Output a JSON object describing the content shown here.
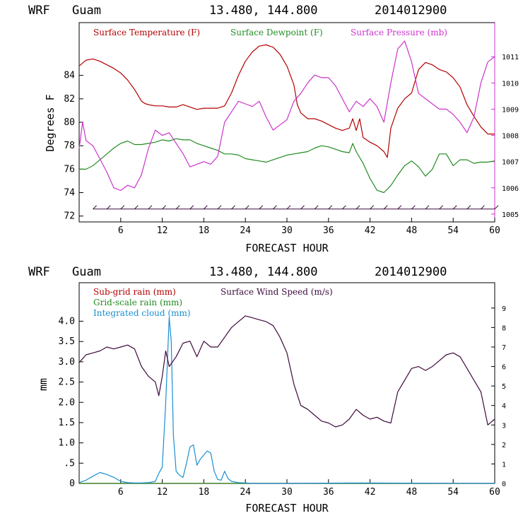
{
  "chart_data": [
    {
      "type": "line",
      "header": {
        "model": "WRF",
        "location": "Guam",
        "coords": "13.480, 144.800",
        "date": "2014012900"
      },
      "xlabel": "FORECAST HOUR",
      "ylabel": "Degrees F",
      "xlim": [
        0,
        60
      ],
      "ylim": [
        71.5,
        88.5
      ],
      "y2lim": [
        1004.7,
        1012.3
      ],
      "xticks": [
        6,
        12,
        18,
        24,
        30,
        36,
        42,
        48,
        54,
        60
      ],
      "yticks": [
        72,
        74,
        76,
        78,
        80,
        82,
        84
      ],
      "y2ticks": [
        1005,
        1006,
        1007,
        1008,
        1009,
        1010,
        1011
      ],
      "series": [
        {
          "name": "Surface Temperature (F)",
          "color": "#b30000",
          "axis": "left",
          "x": [
            0,
            1,
            2,
            3,
            4,
            5,
            6,
            7,
            8,
            9,
            9.5,
            10,
            11,
            12,
            13,
            14,
            15,
            16,
            17,
            18,
            19,
            20,
            21,
            22,
            23,
            24,
            25,
            26,
            27,
            28,
            29,
            30,
            31,
            31.5,
            32,
            33,
            34,
            35,
            36,
            37,
            38,
            39,
            39.5,
            40,
            40.5,
            41,
            42,
            43,
            44,
            44.5,
            45,
            46,
            47,
            48,
            49,
            50,
            51,
            52,
            53,
            54,
            55,
            56,
            57,
            58,
            59,
            60
          ],
          "y": [
            84.8,
            85.3,
            85.4,
            85.2,
            84.9,
            84.6,
            84.2,
            83.6,
            82.8,
            81.8,
            81.6,
            81.5,
            81.4,
            81.4,
            81.3,
            81.3,
            81.5,
            81.3,
            81.1,
            81.2,
            81.2,
            81.2,
            81.4,
            82.5,
            84,
            85.2,
            86,
            86.5,
            86.6,
            86.4,
            85.8,
            84.8,
            83.2,
            81.5,
            80.8,
            80.3,
            80.3,
            80.1,
            79.8,
            79.5,
            79.3,
            79.5,
            80.3,
            79.3,
            80.3,
            78.7,
            78.3,
            78,
            77.5,
            77,
            79.5,
            81.2,
            82,
            82.5,
            84.5,
            85.1,
            84.9,
            84.5,
            84.3,
            83.8,
            83,
            81.5,
            80.5,
            79.6,
            79,
            79
          ],
          "labels": []
        },
        {
          "name": "Surface Dewpoint (F)",
          "color": "#228b22",
          "axis": "left",
          "x": [
            0,
            1,
            2,
            3,
            4,
            5,
            6,
            7,
            8,
            9,
            10,
            11,
            12,
            13,
            14,
            15,
            16,
            17,
            18,
            19,
            20,
            21,
            22,
            23,
            24,
            25,
            26,
            27,
            28,
            29,
            30,
            31,
            32,
            33,
            34,
            35,
            36,
            37,
            38,
            39,
            39.5,
            40,
            41,
            42,
            43,
            44,
            45,
            46,
            47,
            48,
            49,
            50,
            51,
            52,
            53,
            54,
            55,
            56,
            57,
            58,
            59,
            60
          ],
          "y": [
            76,
            76,
            76.3,
            76.8,
            77.3,
            77.8,
            78.2,
            78.4,
            78.1,
            78.1,
            78.2,
            78.3,
            78.5,
            78.4,
            78.6,
            78.5,
            78.5,
            78.2,
            78,
            77.8,
            77.6,
            77.3,
            77.3,
            77.2,
            76.9,
            76.8,
            76.7,
            76.6,
            76.8,
            77,
            77.2,
            77.3,
            77.4,
            77.5,
            77.8,
            78,
            77.9,
            77.7,
            77.5,
            77.4,
            78.2,
            77.5,
            76.5,
            75.2,
            74.2,
            74,
            74.6,
            75.5,
            76.3,
            76.7,
            76.2,
            75.4,
            76,
            77.3,
            77.3,
            76.3,
            76.8,
            76.8,
            76.5,
            76.6,
            76.6,
            76.7
          ],
          "labels": []
        },
        {
          "name": "Surface Pressure (mb)",
          "color": "#cc33cc",
          "axis": "right",
          "x": [
            0,
            0.5,
            1,
            2,
            3,
            4,
            5,
            6,
            7,
            8,
            9,
            10,
            11,
            12,
            13,
            14,
            15,
            16,
            17,
            18,
            19,
            20,
            21,
            22,
            23,
            24,
            25,
            26,
            27,
            28,
            29,
            30,
            31,
            32,
            33,
            34,
            35,
            36,
            37,
            38,
            39,
            40,
            41,
            42,
            43,
            44,
            45,
            46,
            47,
            48,
            49,
            50,
            51,
            52,
            53,
            54,
            55,
            56,
            57,
            58,
            59,
            60
          ],
          "y": [
            1007.5,
            1008.5,
            1007.8,
            1007.6,
            1007.1,
            1006.6,
            1006,
            1005.9,
            1006.1,
            1006,
            1006.5,
            1007.5,
            1008.2,
            1008,
            1008.1,
            1007.7,
            1007.3,
            1006.8,
            1006.9,
            1007,
            1006.9,
            1007.2,
            1008.5,
            1008.9,
            1009.3,
            1009.2,
            1009.1,
            1009.3,
            1008.7,
            1008.2,
            1008.4,
            1008.6,
            1009.3,
            1009.6,
            1010,
            1010.3,
            1010.2,
            1010.2,
            1009.9,
            1009.4,
            1008.9,
            1009.3,
            1009.1,
            1009.4,
            1009.1,
            1008.5,
            1010,
            1011.3,
            1011.6,
            1010.8,
            1009.6,
            1009.4,
            1009.2,
            1009,
            1009,
            1008.8,
            1008.5,
            1008.1,
            1008.7,
            1010,
            1010.8,
            1011
          ],
          "labels": []
        }
      ],
      "wind_barbs": {
        "y_level": 72.6,
        "x": [
          2,
          4,
          6,
          8,
          10,
          12,
          14,
          16,
          18,
          20,
          22,
          24,
          26,
          28,
          30,
          32,
          34,
          36,
          38,
          40,
          42,
          44,
          46,
          48,
          50,
          52,
          54,
          56,
          58,
          60
        ]
      }
    },
    {
      "type": "line",
      "header": {
        "model": "WRF",
        "location": "Guam",
        "coords": "13.480, 144.800",
        "date": "2014012900"
      },
      "xlabel": "FORECAST HOUR",
      "ylabel": "mm",
      "xlim": [
        0,
        60
      ],
      "ylim": [
        0,
        4.95
      ],
      "y2lim": [
        0,
        10.3
      ],
      "xticks": [
        6,
        12,
        18,
        24,
        30,
        36,
        42,
        48,
        54,
        60
      ],
      "yticks": [
        0,
        0.5,
        1,
        1.5,
        2,
        2.5,
        3,
        3.5,
        4
      ],
      "yticklabels": [
        "0",
        ".5",
        "1.0",
        "1.5",
        "2.0",
        "2.5",
        "3.0",
        "3.5",
        "4.0"
      ],
      "y2ticks": [
        0,
        1,
        2,
        3,
        4,
        5,
        6,
        7,
        8,
        9
      ],
      "series": [
        {
          "name": "Sub-grid rain (mm)",
          "color": "#b30000",
          "axis": "left",
          "x": [
            0,
            60
          ],
          "y": [
            0,
            0
          ],
          "labels": []
        },
        {
          "name": "Grid-scale rain (mm)",
          "color": "#228b22",
          "axis": "left",
          "x": [
            0,
            60
          ],
          "y": [
            0,
            0
          ],
          "labels": []
        },
        {
          "name": "Integrated cloud (mm)",
          "color": "#1a8fd0",
          "axis": "left",
          "x": [
            0,
            1,
            2,
            3,
            4,
            5,
            6,
            7,
            8,
            9,
            10,
            11,
            11.5,
            12,
            12.5,
            13,
            13.3,
            13.6,
            14,
            14.5,
            15,
            15.5,
            16,
            16.5,
            17,
            17.5,
            18,
            18.5,
            19,
            19.5,
            20,
            20.5,
            21,
            21.5,
            22,
            23,
            24,
            25,
            30,
            40,
            60
          ],
          "y": [
            0.02,
            0.08,
            0.18,
            0.27,
            0.22,
            0.15,
            0.05,
            0.02,
            0.01,
            0.01,
            0.02,
            0.05,
            0.25,
            0.4,
            2,
            4.1,
            3.5,
            1.2,
            0.3,
            0.2,
            0.15,
            0.5,
            0.9,
            0.95,
            0.45,
            0.6,
            0.7,
            0.8,
            0.75,
            0.3,
            0.1,
            0.08,
            0.3,
            0.12,
            0.05,
            0.02,
            0.01,
            0,
            0,
            0.01,
            0
          ],
          "labels": []
        },
        {
          "name": "Surface Wind Speed (m/s)",
          "color": "#3d0a3d",
          "axis": "right",
          "x": [
            0,
            1,
            2,
            3,
            4,
            5,
            6,
            7,
            8,
            9,
            10,
            11,
            11.5,
            12,
            12.5,
            13,
            14,
            15,
            16,
            17,
            18,
            19,
            20,
            21,
            22,
            23,
            24,
            25,
            26,
            27,
            28,
            29,
            30,
            31,
            32,
            33,
            34,
            35,
            36,
            37,
            38,
            39,
            40,
            41,
            42,
            43,
            44,
            45,
            46,
            47,
            48,
            49,
            50,
            51,
            52,
            53,
            54,
            55,
            56,
            57,
            58,
            59,
            60
          ],
          "y": [
            6.2,
            6.6,
            6.7,
            6.8,
            7.0,
            6.9,
            7.0,
            7.1,
            6.9,
            6.0,
            5.5,
            5.2,
            4.5,
            5.5,
            6.8,
            6.0,
            6.5,
            7.2,
            7.3,
            6.5,
            7.3,
            7.0,
            7.0,
            7.5,
            8.0,
            8.3,
            8.6,
            8.5,
            8.4,
            8.3,
            8.1,
            7.5,
            6.7,
            5.1,
            4.0,
            3.8,
            3.5,
            3.2,
            3.1,
            2.9,
            3.0,
            3.3,
            3.8,
            3.5,
            3.3,
            3.4,
            3.2,
            3.1,
            4.7,
            5.3,
            5.9,
            6.0,
            5.8,
            6.0,
            6.3,
            6.6,
            6.7,
            6.5,
            5.9,
            5.3,
            4.7,
            3.0,
            3.3
          ],
          "labels": []
        }
      ]
    }
  ]
}
